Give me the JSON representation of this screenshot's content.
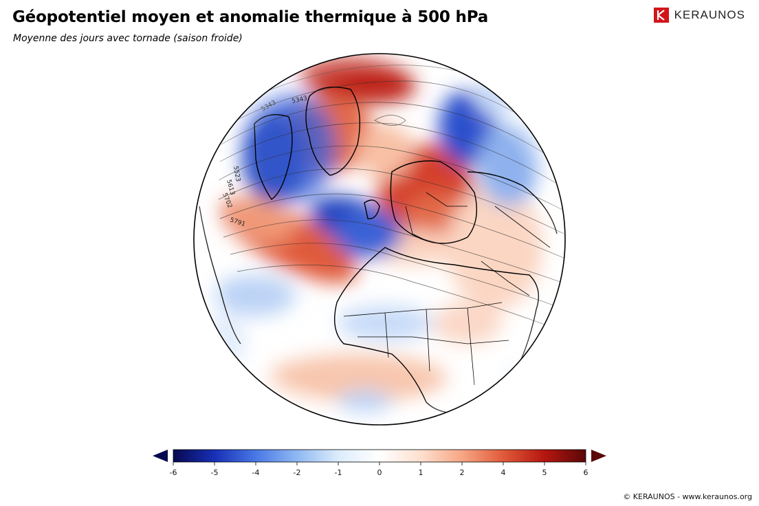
{
  "header": {
    "title": "Géopotentiel moyen et anomalie thermique à 500 hPa",
    "subtitle": "Moyenne des jours avec tornade (saison froide)"
  },
  "brand": {
    "name": "KERAUNOS",
    "color": "#d4131a",
    "icon": "keraunos-logo-icon"
  },
  "map": {
    "contour_labels": [
      "5343",
      "5343",
      "5523",
      "5613",
      "5702",
      "5791"
    ]
  },
  "legend": {
    "ticks": [
      "-6",
      "-5",
      "-4",
      "-2",
      "-1",
      "0",
      "1",
      "2",
      "4",
      "5",
      "6"
    ],
    "colors": [
      "#08084f",
      "#1730b6",
      "#4a78e6",
      "#8fb8f2",
      "#dcecfb",
      "#ffffff",
      "#fde0cf",
      "#f6a684",
      "#e05a3a",
      "#b5160f",
      "#5a0808"
    ]
  },
  "footer": {
    "credit": "© KERAUNOS - www.keraunos.org"
  }
}
